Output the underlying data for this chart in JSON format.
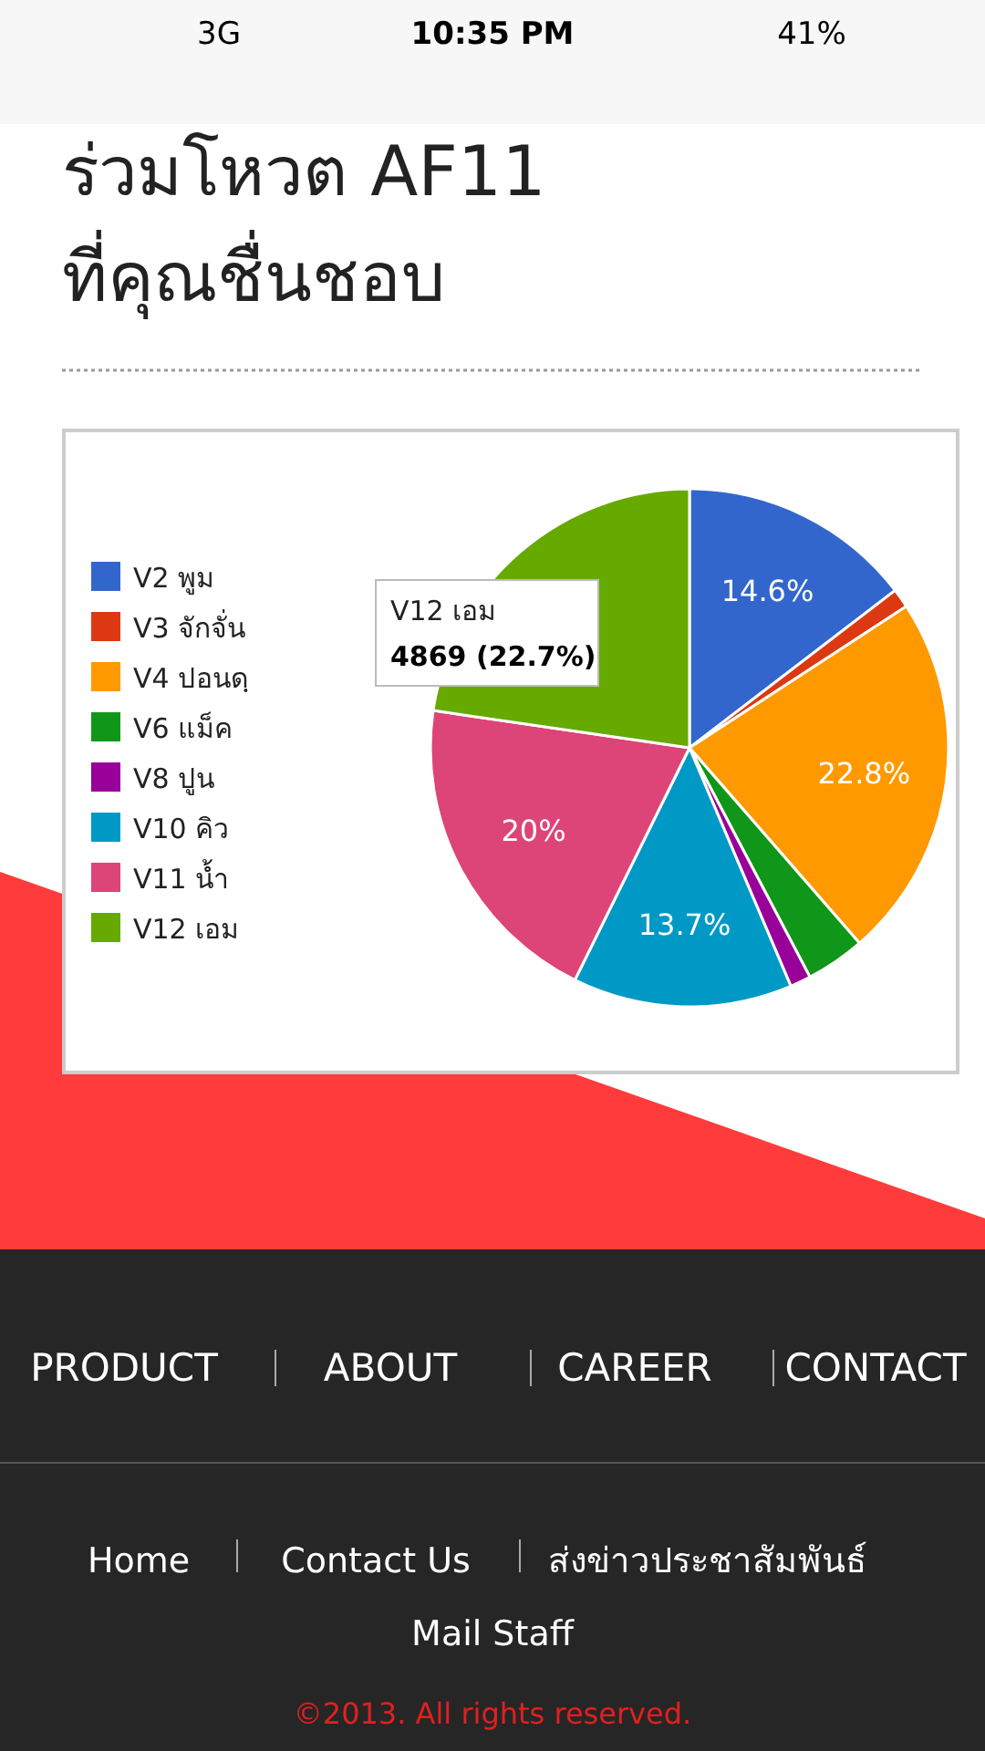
{
  "chart_data": {
    "type": "pie",
    "title": "ร่วมโหวต AF11 ที่คุณชื่นชอบ",
    "categories": [
      "V2 พูม",
      "V3 จักจั่น",
      "V4 ปอนดฺ",
      "V6 แม็ค",
      "V8 ปูน",
      "V10 คิว",
      "V11 น้ำ",
      "V12 เอม"
    ],
    "values": [
      14.6,
      1.2,
      22.8,
      3.7,
      1.3,
      13.7,
      20,
      22.7
    ],
    "colors": [
      "#3366cc",
      "#dc3912",
      "#ff9900",
      "#109618",
      "#990099",
      "#0099c6",
      "#dd4477",
      "#66aa00"
    ],
    "value_labels": [
      "14.6%",
      null,
      "22.8%",
      null,
      null,
      "13.7%",
      "20%",
      null
    ],
    "legend": "left",
    "annotations": [
      "V12 เอม",
      "**4869 (22.7%)**",
      "3G",
      "10:35 PM",
      "41%",
      "PRODUCT",
      "ABOUT",
      "CAREER",
      "CONTACT",
      "Home",
      "Contact Us",
      "ส่งข่าวประชาสัมพันธ์",
      "Mail Staff",
      "©2013. All rights reserved."
    ]
  }
}
